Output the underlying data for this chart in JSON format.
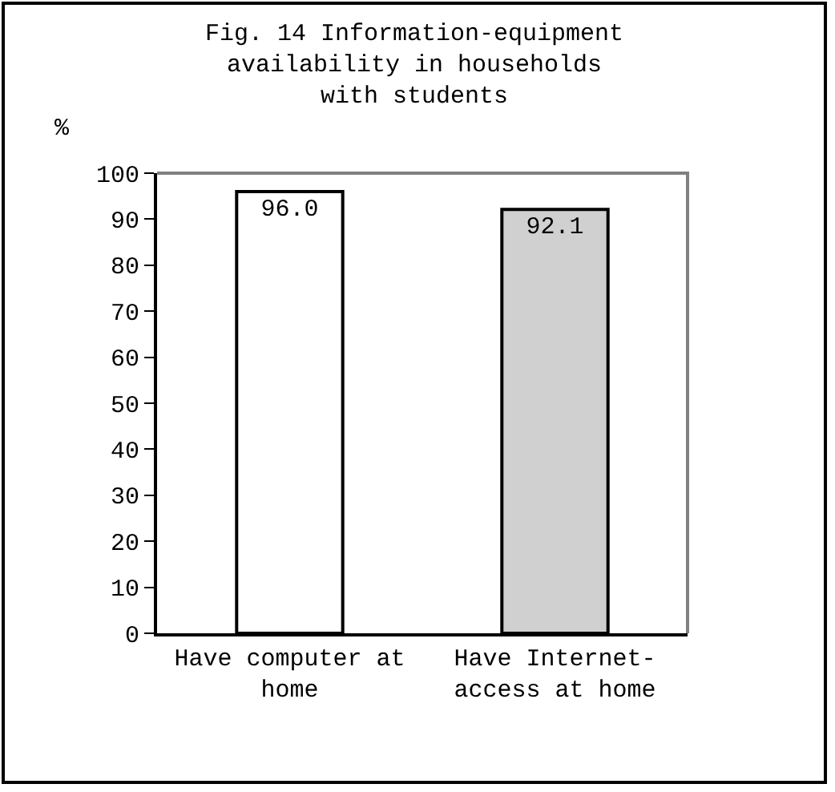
{
  "chart_data": {
    "type": "bar",
    "title": "Fig. 14  Information-equipment availability in households with students",
    "ylabel": "%",
    "categories": [
      "Have computer at home",
      "Have Internet-access at home"
    ],
    "values": [
      96.0,
      92.1
    ],
    "colors": [
      "#ffffff",
      "#d0d0d0"
    ],
    "value_labels": [
      "96.0",
      "92.1"
    ],
    "ylim": [
      0,
      100
    ],
    "yticks": [
      0,
      10,
      20,
      30,
      40,
      50,
      60,
      70,
      80,
      90,
      100
    ],
    "grid": false,
    "legend": false
  }
}
